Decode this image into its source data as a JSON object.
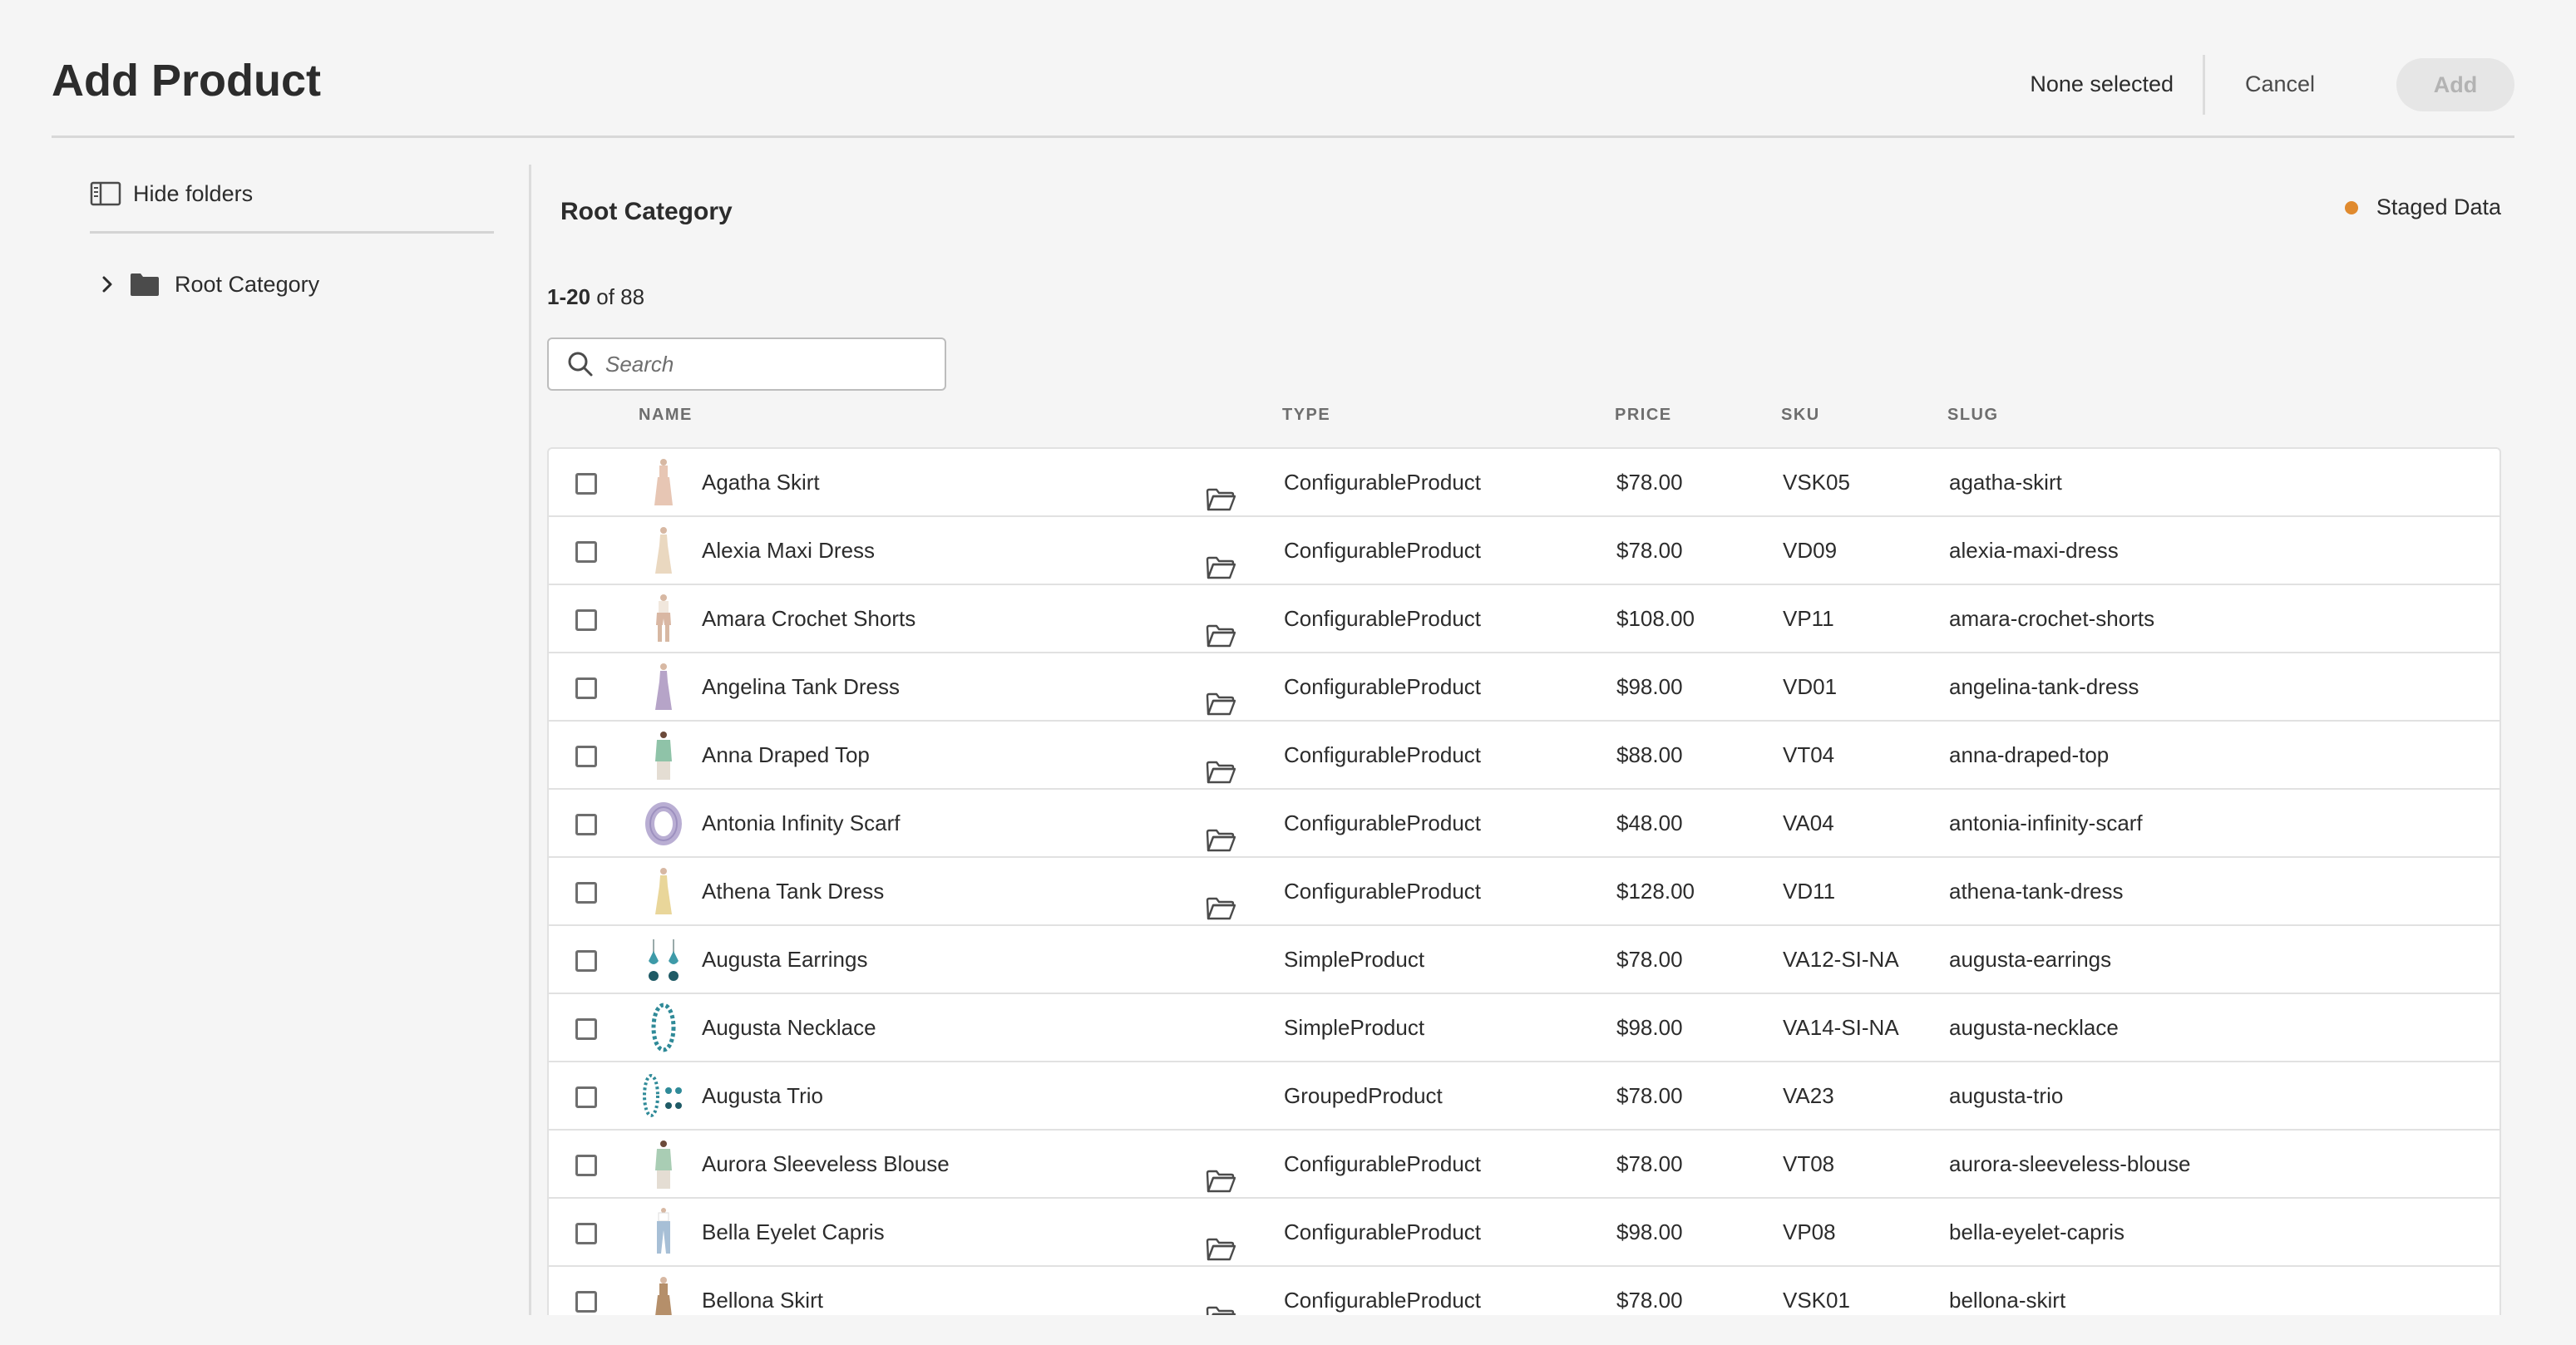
{
  "header": {
    "title": "Add Product",
    "selection_status": "None selected",
    "cancel_label": "Cancel",
    "add_label": "Add"
  },
  "sidebar": {
    "hide_folders_label": "Hide folders",
    "tree": [
      {
        "label": "Root Category",
        "icon": "folder-icon",
        "expand_icon": "chevron-right-icon"
      }
    ]
  },
  "main": {
    "category_title": "Root Category",
    "status_label": "Staged Data",
    "status_color": "#e08a2e",
    "range": "1-20",
    "count_suffix": " of 88",
    "search_placeholder": "Search",
    "columns": {
      "name": "NAME",
      "type": "TYPE",
      "price": "PRICE",
      "sku": "SKU",
      "slug": "SLUG"
    },
    "rows": [
      {
        "name": "Agatha Skirt",
        "folder": true,
        "type": "ConfigurableProduct",
        "price": "$78.00",
        "sku": "VSK05",
        "slug": "agatha-skirt",
        "thumb": "skirt",
        "thumb_color": "#e7c6b4"
      },
      {
        "name": "Alexia Maxi Dress",
        "folder": true,
        "type": "ConfigurableProduct",
        "price": "$78.00",
        "sku": "VD09",
        "slug": "alexia-maxi-dress",
        "thumb": "dress",
        "thumb_color": "#ead8c0"
      },
      {
        "name": "Amara Crochet Shorts",
        "folder": true,
        "type": "ConfigurableProduct",
        "price": "$108.00",
        "sku": "VP11",
        "slug": "amara-crochet-shorts",
        "thumb": "shorts",
        "thumb_color": "#d9b7a3"
      },
      {
        "name": "Angelina Tank Dress",
        "folder": true,
        "type": "ConfigurableProduct",
        "price": "$98.00",
        "sku": "VD01",
        "slug": "angelina-tank-dress",
        "thumb": "dress",
        "thumb_color": "#b6a4c8"
      },
      {
        "name": "Anna Draped Top",
        "folder": true,
        "type": "ConfigurableProduct",
        "price": "$88.00",
        "sku": "VT04",
        "slug": "anna-draped-top",
        "thumb": "top",
        "thumb_color": "#8fc3a8"
      },
      {
        "name": "Antonia Infinity Scarf",
        "folder": true,
        "type": "ConfigurableProduct",
        "price": "$48.00",
        "sku": "VA04",
        "slug": "antonia-infinity-scarf",
        "thumb": "scarf",
        "thumb_color": "#b9aed3"
      },
      {
        "name": "Athena Tank Dress",
        "folder": true,
        "type": "ConfigurableProduct",
        "price": "$128.00",
        "sku": "VD11",
        "slug": "athena-tank-dress",
        "thumb": "dress",
        "thumb_color": "#e9d69a"
      },
      {
        "name": "Augusta Earrings",
        "folder": false,
        "type": "SimpleProduct",
        "price": "$78.00",
        "sku": "VA12-SI-NA",
        "slug": "augusta-earrings",
        "thumb": "earrings",
        "thumb_color": "#3e9aa8"
      },
      {
        "name": "Augusta Necklace",
        "folder": false,
        "type": "SimpleProduct",
        "price": "$98.00",
        "sku": "VA14-SI-NA",
        "slug": "augusta-necklace",
        "thumb": "necklace",
        "thumb_color": "#2f8a98"
      },
      {
        "name": "Augusta Trio",
        "folder": false,
        "type": "GroupedProduct",
        "price": "$78.00",
        "sku": "VA23",
        "slug": "augusta-trio",
        "thumb": "trio",
        "thumb_color": "#2f8a98"
      },
      {
        "name": "Aurora Sleeveless Blouse",
        "folder": true,
        "type": "ConfigurableProduct",
        "price": "$78.00",
        "sku": "VT08",
        "slug": "aurora-sleeveless-blouse",
        "thumb": "top",
        "thumb_color": "#a9cdb4"
      },
      {
        "name": "Bella Eyelet Capris",
        "folder": true,
        "type": "ConfigurableProduct",
        "price": "$98.00",
        "sku": "VP08",
        "slug": "bella-eyelet-capris",
        "thumb": "capris",
        "thumb_color": "#a7bfd6"
      },
      {
        "name": "Bellona Skirt",
        "folder": true,
        "type": "ConfigurableProduct",
        "price": "$78.00",
        "sku": "VSK01",
        "slug": "bellona-skirt",
        "thumb": "skirt",
        "thumb_color": "#b58f6a"
      }
    ]
  }
}
